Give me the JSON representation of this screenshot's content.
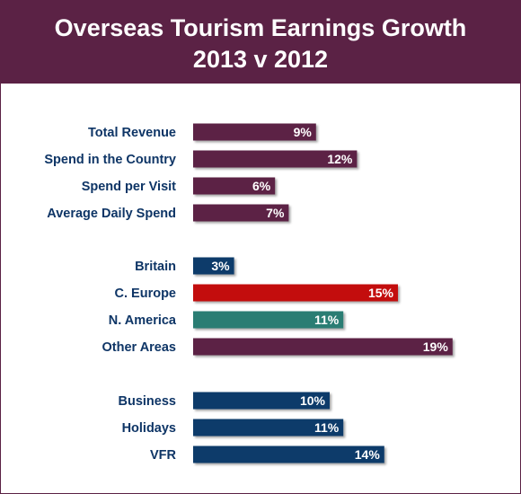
{
  "title": {
    "line1": "Overseas Tourism Earnings Growth",
    "line2": "2013 v 2012"
  },
  "colors": {
    "header_bg": "#5b2245",
    "plum": "#5b2245",
    "navy": "#103a6b",
    "red": "#c3070b",
    "teal": "#2a7d73"
  },
  "chart_data": {
    "type": "bar",
    "orientation": "horizontal",
    "title": "Overseas Tourism Earnings Growth 2013 v 2012",
    "unit": "%",
    "groups": [
      {
        "items": [
          {
            "label": "Total Revenue",
            "value": 9,
            "display": "9%",
            "color": "#5b2245"
          },
          {
            "label": "Spend in the Country",
            "value": 12,
            "display": "12%",
            "color": "#5b2245"
          },
          {
            "label": "Spend per Visit",
            "value": 6,
            "display": "6%",
            "color": "#5b2245"
          },
          {
            "label": "Average Daily Spend",
            "value": 7,
            "display": "7%",
            "color": "#5b2245"
          }
        ]
      },
      {
        "items": [
          {
            "label": "Britain",
            "value": 3,
            "display": "3%",
            "color": "#103a6b"
          },
          {
            "label": "C. Europe",
            "value": 15,
            "display": "15%",
            "color": "#c3070b"
          },
          {
            "label": "N. America",
            "value": 11,
            "display": "11%",
            "color": "#2a7d73"
          },
          {
            "label": "Other Areas",
            "value": 19,
            "display": "19%",
            "color": "#5b2245"
          }
        ]
      },
      {
        "items": [
          {
            "label": "Business",
            "value": 10,
            "display": "10%",
            "color": "#103a6b"
          },
          {
            "label": "Holidays",
            "value": 11,
            "display": "11%",
            "color": "#103a6b"
          },
          {
            "label": "VFR",
            "value": 14,
            "display": "14%",
            "color": "#103a6b"
          }
        ]
      }
    ]
  }
}
